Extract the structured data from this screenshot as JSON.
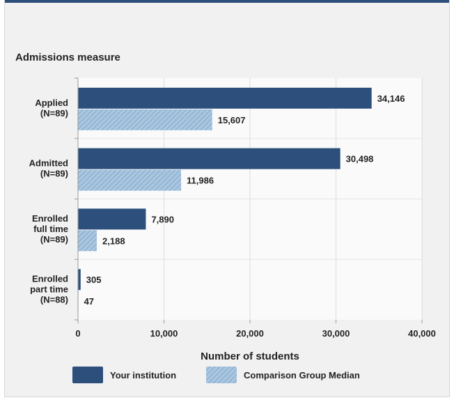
{
  "chart_data": {
    "type": "bar",
    "orientation": "horizontal",
    "title": "Admissions measure",
    "xlabel": "Number of students",
    "xlim": [
      0,
      40000
    ],
    "xticks": [
      0,
      10000,
      20000,
      30000,
      40000
    ],
    "xtick_labels": [
      "0",
      "10,000",
      "20,000",
      "30,000",
      "40,000"
    ],
    "grid": true,
    "legend_position": "bottom",
    "categories": [
      [
        "Applied",
        "(N=89)"
      ],
      [
        "Admitted",
        "(N=89)"
      ],
      [
        "Enrolled",
        "full time",
        "(N=89)"
      ],
      [
        "Enrolled",
        "part time",
        "(N=88)"
      ]
    ],
    "series": [
      {
        "name": "Your institution",
        "color": "#2c4f7c",
        "pattern": "solid",
        "values": [
          34146,
          30498,
          7890,
          305
        ],
        "labels": [
          "34,146",
          "30,498",
          "7,890",
          "305"
        ]
      },
      {
        "name": "Comparison Group Median",
        "color": "#a9c6e0",
        "pattern": "hatched",
        "values": [
          15607,
          11986,
          2188,
          47
        ],
        "labels": [
          "15,607",
          "11,986",
          "2,188",
          "47"
        ]
      }
    ]
  }
}
